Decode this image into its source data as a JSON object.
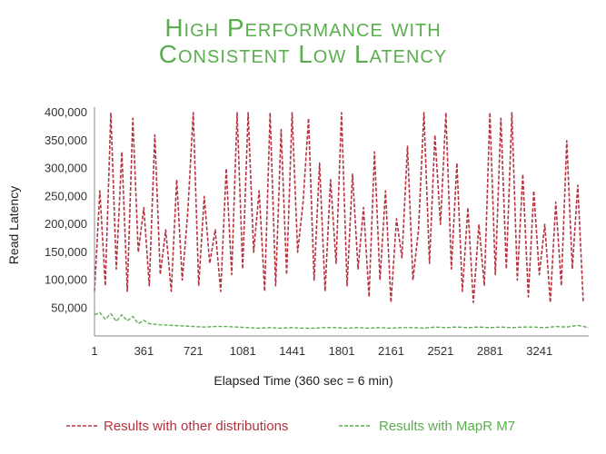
{
  "chart_data": {
    "type": "line",
    "title_line1": "High Performance with",
    "title_line2": "Consistent Low Latency",
    "xlabel": "Elapsed Time (360 sec = 6 min)",
    "ylabel": "Read Latency",
    "xlim": [
      1,
      3600
    ],
    "ylim": [
      0,
      410000
    ],
    "x_ticks": [
      1,
      361,
      721,
      1081,
      1441,
      1801,
      2161,
      2521,
      2881,
      3241
    ],
    "x_tick_labels": [
      "1",
      "361",
      "721",
      "1081",
      "1441",
      "1801",
      "2161",
      "2521",
      "2881",
      "3241"
    ],
    "y_ticks": [
      50000,
      100000,
      150000,
      200000,
      250000,
      300000,
      350000,
      400000
    ],
    "y_tick_labels": [
      "50,000",
      "100,000",
      "150,000",
      "200,000",
      "250,000",
      "300,000",
      "350,000",
      "400,000"
    ],
    "grid": false,
    "legend_position": "bottom",
    "series": [
      {
        "name": "Results with other distributions",
        "color": "#b5323f",
        "style": "dashed",
        "x": [
          1,
          40,
          80,
          120,
          160,
          200,
          240,
          280,
          320,
          360,
          400,
          440,
          480,
          520,
          560,
          600,
          640,
          680,
          720,
          760,
          800,
          840,
          880,
          920,
          960,
          1000,
          1040,
          1080,
          1120,
          1160,
          1200,
          1240,
          1280,
          1320,
          1360,
          1400,
          1440,
          1480,
          1520,
          1560,
          1600,
          1640,
          1680,
          1720,
          1760,
          1800,
          1840,
          1880,
          1920,
          1960,
          2000,
          2040,
          2080,
          2120,
          2160,
          2200,
          2240,
          2280,
          2320,
          2360,
          2400,
          2440,
          2480,
          2520,
          2560,
          2600,
          2640,
          2680,
          2720,
          2760,
          2800,
          2840,
          2880,
          2920,
          2960,
          3000,
          3040,
          3080,
          3120,
          3160,
          3200,
          3240,
          3280,
          3320,
          3360,
          3400,
          3440,
          3480,
          3520,
          3560
        ],
        "values": [
          80000,
          260000,
          90000,
          400000,
          120000,
          330000,
          80000,
          390000,
          150000,
          230000,
          90000,
          360000,
          110000,
          190000,
          80000,
          280000,
          100000,
          220000,
          400000,
          90000,
          250000,
          130000,
          190000,
          80000,
          300000,
          110000,
          400000,
          120000,
          400000,
          150000,
          260000,
          80000,
          400000,
          90000,
          370000,
          110000,
          400000,
          150000,
          240000,
          390000,
          100000,
          310000,
          80000,
          280000,
          130000,
          400000,
          90000,
          290000,
          120000,
          230000,
          70000,
          330000,
          100000,
          260000,
          60000,
          210000,
          140000,
          340000,
          100000,
          190000,
          400000,
          130000,
          360000,
          200000,
          400000,
          120000,
          310000,
          80000,
          230000,
          60000,
          200000,
          90000,
          400000,
          110000,
          390000,
          120000,
          400000,
          100000,
          290000,
          70000,
          260000,
          110000,
          200000,
          60000,
          240000,
          90000,
          350000,
          120000,
          270000,
          60000
        ]
      },
      {
        "name": "Results with MapR M7",
        "color": "#5aae4e",
        "style": "dashed",
        "x": [
          1,
          40,
          80,
          120,
          160,
          200,
          240,
          280,
          320,
          360,
          400,
          480,
          560,
          640,
          720,
          800,
          880,
          960,
          1040,
          1120,
          1200,
          1280,
          1360,
          1440,
          1520,
          1600,
          1680,
          1760,
          1840,
          1920,
          2000,
          2080,
          2160,
          2240,
          2320,
          2400,
          2480,
          2560,
          2640,
          2720,
          2800,
          2880,
          2960,
          3040,
          3120,
          3200,
          3280,
          3360,
          3440,
          3520,
          3600
        ],
        "values": [
          38000,
          42000,
          30000,
          40000,
          26000,
          38000,
          27000,
          35000,
          22000,
          28000,
          22000,
          20000,
          19000,
          18000,
          17000,
          16000,
          17000,
          17000,
          16000,
          15000,
          14000,
          15000,
          14000,
          15000,
          14000,
          14000,
          15000,
          15000,
          14000,
          15000,
          14000,
          15000,
          14000,
          15000,
          15000,
          14000,
          16000,
          15000,
          16000,
          15000,
          16000,
          15000,
          16000,
          15000,
          16000,
          16000,
          15000,
          17000,
          16000,
          19000,
          15000
        ]
      }
    ]
  }
}
